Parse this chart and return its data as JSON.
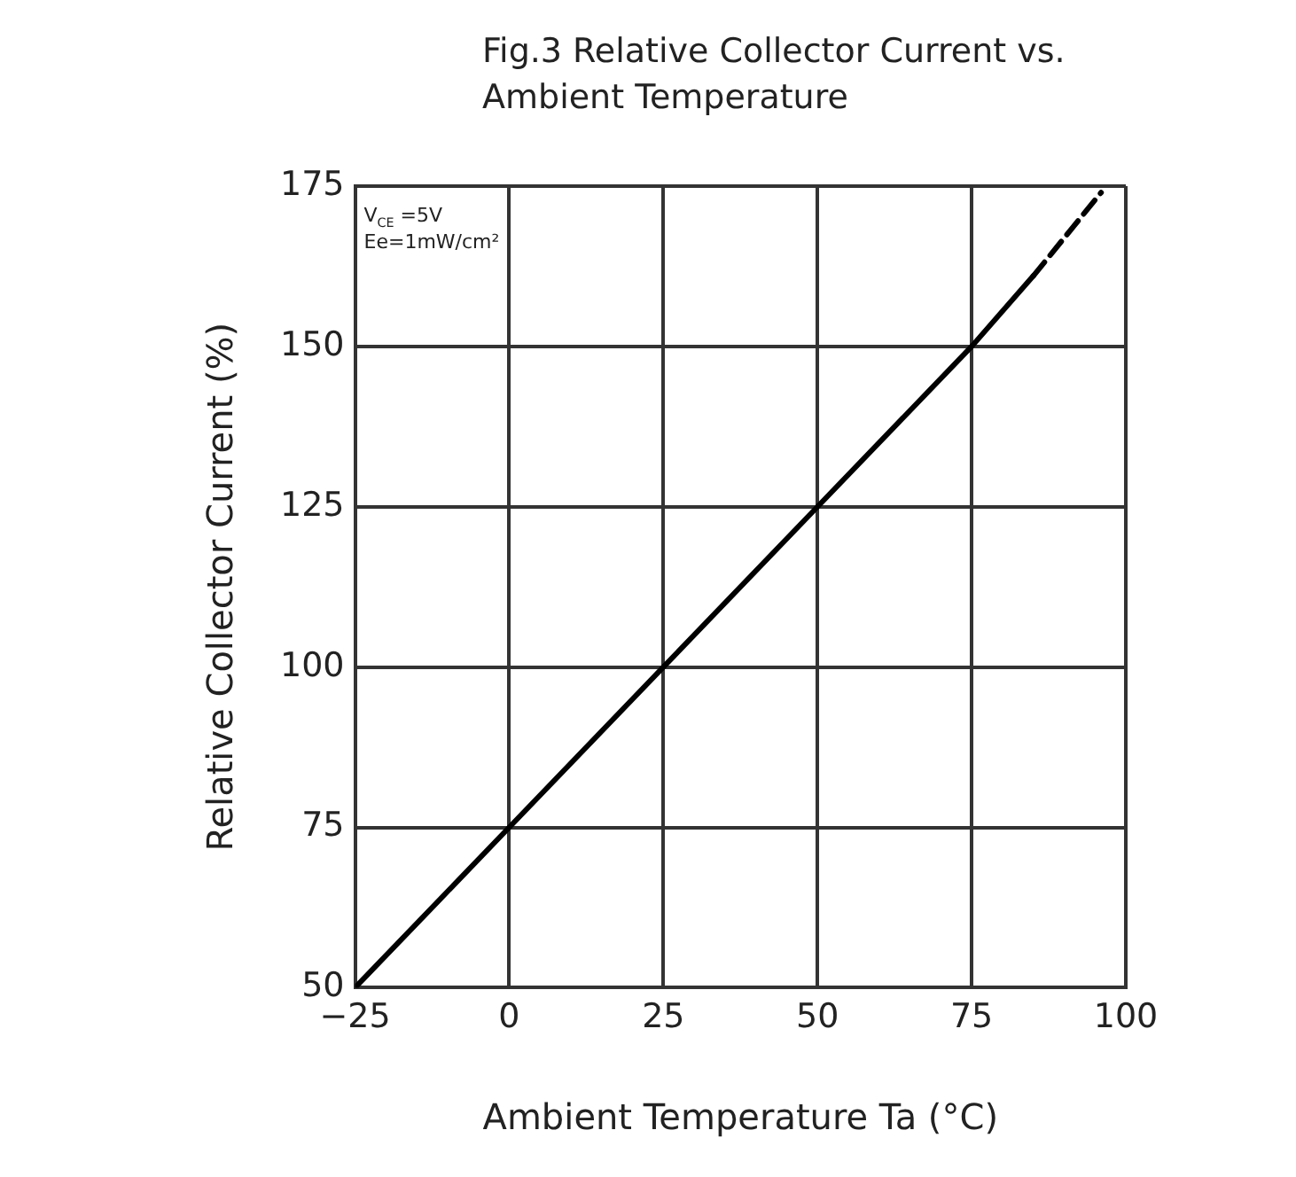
{
  "chart_data": {
    "type": "line",
    "title": "Fig.3 Relative Collector Current vs. Ambient Temperature",
    "xlabel": "Ambient Temperature Ta (°C)",
    "ylabel": "Relative Collector Current (%)",
    "annotations": [
      "V$_{CE}$ =5V",
      "Ee=1mW/cm²"
    ],
    "series": [
      {
        "color": "#000000",
        "line_style": "solid",
        "x": [
          -25,
          0,
          25,
          50,
          75,
          85
        ],
        "values": [
          50,
          75,
          100,
          125,
          150,
          161
        ]
      },
      {
        "color": "#000000",
        "line_style": "dashed",
        "x": [
          85,
          96
        ],
        "values": [
          161,
          174
        ]
      }
    ],
    "xlim": [
      -25,
      100
    ],
    "xticks": [
      -25,
      0,
      25,
      50,
      75,
      100
    ],
    "ylim": [
      50,
      175
    ],
    "yticks": [
      50,
      75,
      100,
      125,
      150,
      175
    ],
    "grid": true,
    "legend": false,
    "marker": "none"
  }
}
